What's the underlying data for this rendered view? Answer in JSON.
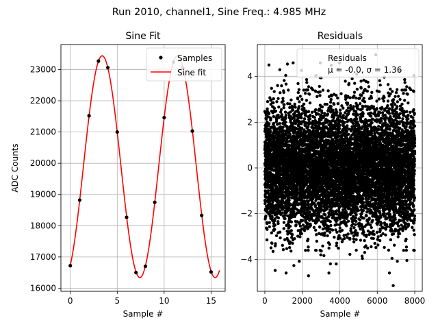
{
  "figure": {
    "suptitle": "Run 2010, channel1, Sine Freq.: 4.985 MHz"
  },
  "chart_data": [
    {
      "type": "scatter",
      "title": "Sine Fit",
      "xlabel": "Sample #",
      "ylabel": "ADC Counts",
      "xlim": [
        -1.0,
        16.5
      ],
      "ylim": [
        15900,
        23800
      ],
      "xticks": [
        0,
        5,
        10,
        15
      ],
      "yticks": [
        16000,
        17000,
        18000,
        19000,
        20000,
        21000,
        22000,
        23000
      ],
      "grid": true,
      "legend": {
        "placement": "top-right",
        "entries": [
          "Samples",
          "Sine fit"
        ]
      },
      "series": [
        {
          "name": "Samples",
          "kind": "points",
          "color": "#000000",
          "x": [
            0,
            1,
            2,
            3,
            4,
            5,
            6,
            7,
            8,
            9,
            10,
            11,
            12,
            13,
            14,
            15
          ],
          "y": [
            16720,
            18820,
            21520,
            23270,
            23060,
            21000,
            18270,
            16500,
            16700,
            18750,
            21460,
            23240,
            23050,
            21030,
            18330,
            16520
          ]
        },
        {
          "name": "Sine fit",
          "kind": "line",
          "color": "#ff0000",
          "x_range": [
            0,
            15.9
          ],
          "model": {
            "offset": 19890,
            "amplitude": 3550,
            "period": 8.023,
            "phase_sample": 3.4
          }
        }
      ]
    },
    {
      "type": "scatter",
      "title": "Residuals",
      "xlabel": "Sample #",
      "ylabel": "",
      "xlim": [
        -400,
        8400
      ],
      "ylim": [
        -5.4,
        5.4
      ],
      "xticks": [
        0,
        2000,
        4000,
        6000,
        8000
      ],
      "yticks": [
        -4,
        -2,
        0,
        2,
        4
      ],
      "grid": true,
      "legend": {
        "placement": "top-right",
        "entries": [
          "Residuals"
        ],
        "label_line2": "μ = -0.0, σ = 1.36"
      },
      "series": [
        {
          "name": "Residuals",
          "color": "#000000",
          "n_points": 8000,
          "mean": -0.0,
          "std": 1.36,
          "x_range": [
            0,
            8000
          ],
          "notable_points": [
            [
              6850,
              -5.15
            ],
            [
              2330,
              -4.72
            ],
            [
              5920,
              4.95
            ],
            [
              800,
              4.3
            ],
            [
              3500,
              -4.2
            ],
            [
              7580,
              -4.05
            ]
          ]
        }
      ]
    }
  ]
}
